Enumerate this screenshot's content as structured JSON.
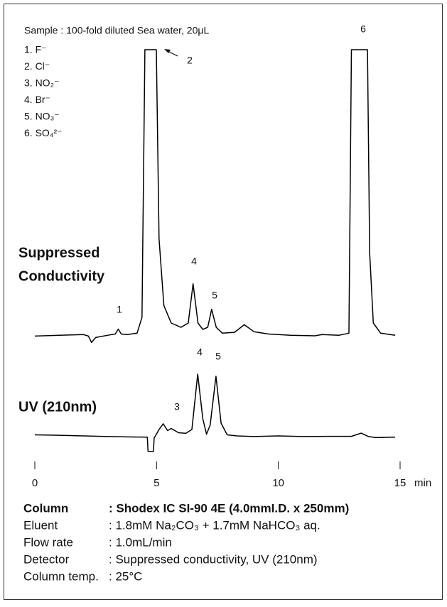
{
  "sample": "Sample : 100-fold diluted Sea water, 20μL",
  "ions": [
    "1. F⁻",
    "2. Cl⁻",
    "3. NO₂⁻",
    "4. Br⁻",
    "5. NO₃⁻",
    "6. SO₄²⁻"
  ],
  "chart_data": [
    {
      "type": "line",
      "title_lines": [
        "Suppressed",
        "Conductivity"
      ],
      "x": [
        0,
        1,
        2,
        2.2,
        2.33,
        2.5,
        3,
        3.3,
        3.43,
        3.55,
        3.8,
        4.2,
        4.4,
        4.52,
        4.99,
        5.1,
        5.3,
        5.6,
        6.0,
        6.3,
        6.5,
        6.7,
        6.9,
        7.1,
        7.26,
        7.45,
        7.7,
        8.2,
        8.6,
        9.0,
        9.6,
        10.5,
        11.5,
        11.8,
        12.5,
        12.9,
        13.0,
        13.66,
        13.75,
        13.9,
        14.2,
        14.8
      ],
      "values": [
        1.5,
        1.8,
        2.0,
        1.5,
        -0.7,
        1.0,
        1.8,
        2.2,
        3.9,
        2.2,
        2.0,
        2.5,
        8,
        100,
        100,
        35,
        12,
        6,
        4.5,
        6,
        19.5,
        6,
        3.8,
        4.5,
        10.7,
        4.5,
        2.5,
        2.8,
        5.4,
        3.0,
        2.2,
        1.8,
        1.6,
        2.0,
        1.8,
        2.5,
        100,
        100,
        30,
        6,
        2.5,
        1.8
      ],
      "color": "#000000",
      "xlim": [
        0,
        15
      ],
      "ylim": [
        -5,
        100
      ],
      "annotations": [
        "1",
        "2",
        "4",
        "5",
        "6"
      ]
    },
    {
      "type": "line",
      "title_lines": [
        "UV (210nm)"
      ],
      "x": [
        0,
        1,
        2,
        3,
        4,
        4.62,
        4.65,
        4.87,
        4.9,
        5.1,
        5.27,
        5.45,
        5.6,
        5.9,
        6.2,
        6.45,
        6.69,
        6.9,
        7.05,
        7.2,
        7.44,
        7.65,
        7.9,
        8.3,
        9,
        10,
        11,
        12,
        13,
        13.4,
        13.7,
        14,
        14.8
      ],
      "values": [
        0.5,
        0.3,
        0,
        -0.3,
        -0.5,
        -0.6,
        -7.3,
        -7.3,
        -1,
        3,
        5.7,
        2.5,
        3.5,
        1.5,
        1.2,
        3,
        29,
        8,
        0.8,
        5,
        28,
        6,
        0.5,
        0,
        -0.3,
        0,
        -0.3,
        -0.2,
        -0.2,
        1.3,
        -0.3,
        -0.8,
        -0.6
      ],
      "color": "#000000",
      "xlim": [
        0,
        15
      ],
      "ylim": [
        -10,
        40
      ],
      "xticks": [
        0,
        5,
        10,
        15
      ],
      "xlabel": "min",
      "annotations": [
        "3",
        "4",
        "5"
      ]
    }
  ],
  "conditions": [
    {
      "label": "Column",
      "value": ": Shodex IC SI-90 4E (4.0mmI.D. x 250mm)"
    },
    {
      "label": "Eluent",
      "value": ": 1.8mM Na₂CO₃ + 1.7mM NaHCO₃ aq."
    },
    {
      "label": "Flow rate",
      "value": ": 1.0mL/min"
    },
    {
      "label": "Detector",
      "value": ": Suppressed conductivity, UV (210nm)"
    },
    {
      "label": "Column temp.",
      "value": ": 25°C"
    }
  ]
}
